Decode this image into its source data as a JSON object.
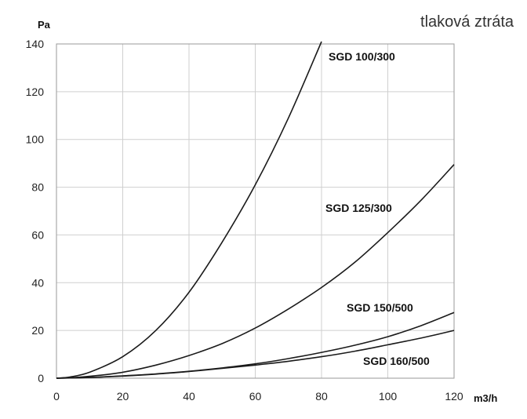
{
  "chart_data": {
    "type": "line",
    "title": "tlaková ztráta",
    "xlabel": "m3/h",
    "ylabel": "Pa",
    "xlim": [
      0,
      120
    ],
    "ylim": [
      0,
      140
    ],
    "xticks": [
      0,
      20,
      40,
      60,
      80,
      100,
      120
    ],
    "yticks": [
      0,
      20,
      40,
      60,
      80,
      100,
      120,
      140
    ],
    "grid": true,
    "series": [
      {
        "name": "SGD 100/300",
        "x": [
          0,
          4,
          10,
          20,
          30,
          40,
          50,
          60,
          70,
          80
        ],
        "y": [
          0,
          0.5,
          2.5,
          9,
          20,
          36,
          57,
          81,
          109,
          141
        ]
      },
      {
        "name": "SGD 125/300",
        "x": [
          0,
          5,
          10,
          20,
          30,
          40,
          50,
          60,
          70,
          80,
          90,
          100,
          110,
          120
        ],
        "y": [
          0,
          0.3,
          0.8,
          2.5,
          5.5,
          9.5,
          14.5,
          21,
          29,
          38,
          48.5,
          61,
          74.5,
          89.5
        ]
      },
      {
        "name": "SGD 150/500",
        "x": [
          0,
          10,
          20,
          30,
          40,
          50,
          60,
          70,
          80,
          90,
          100,
          110,
          120
        ],
        "y": [
          0,
          0.3,
          1,
          1.8,
          2.9,
          4.3,
          6,
          8.2,
          10.8,
          13.8,
          17.4,
          22,
          27.5
        ]
      },
      {
        "name": "SGD 160/500",
        "x": [
          0,
          10,
          20,
          30,
          40,
          50,
          60,
          70,
          80,
          90,
          100,
          110,
          120
        ],
        "y": [
          0,
          0.3,
          0.9,
          1.7,
          2.8,
          4.1,
          5.5,
          7.1,
          9,
          11.3,
          14,
          16.8,
          20
        ]
      }
    ]
  }
}
